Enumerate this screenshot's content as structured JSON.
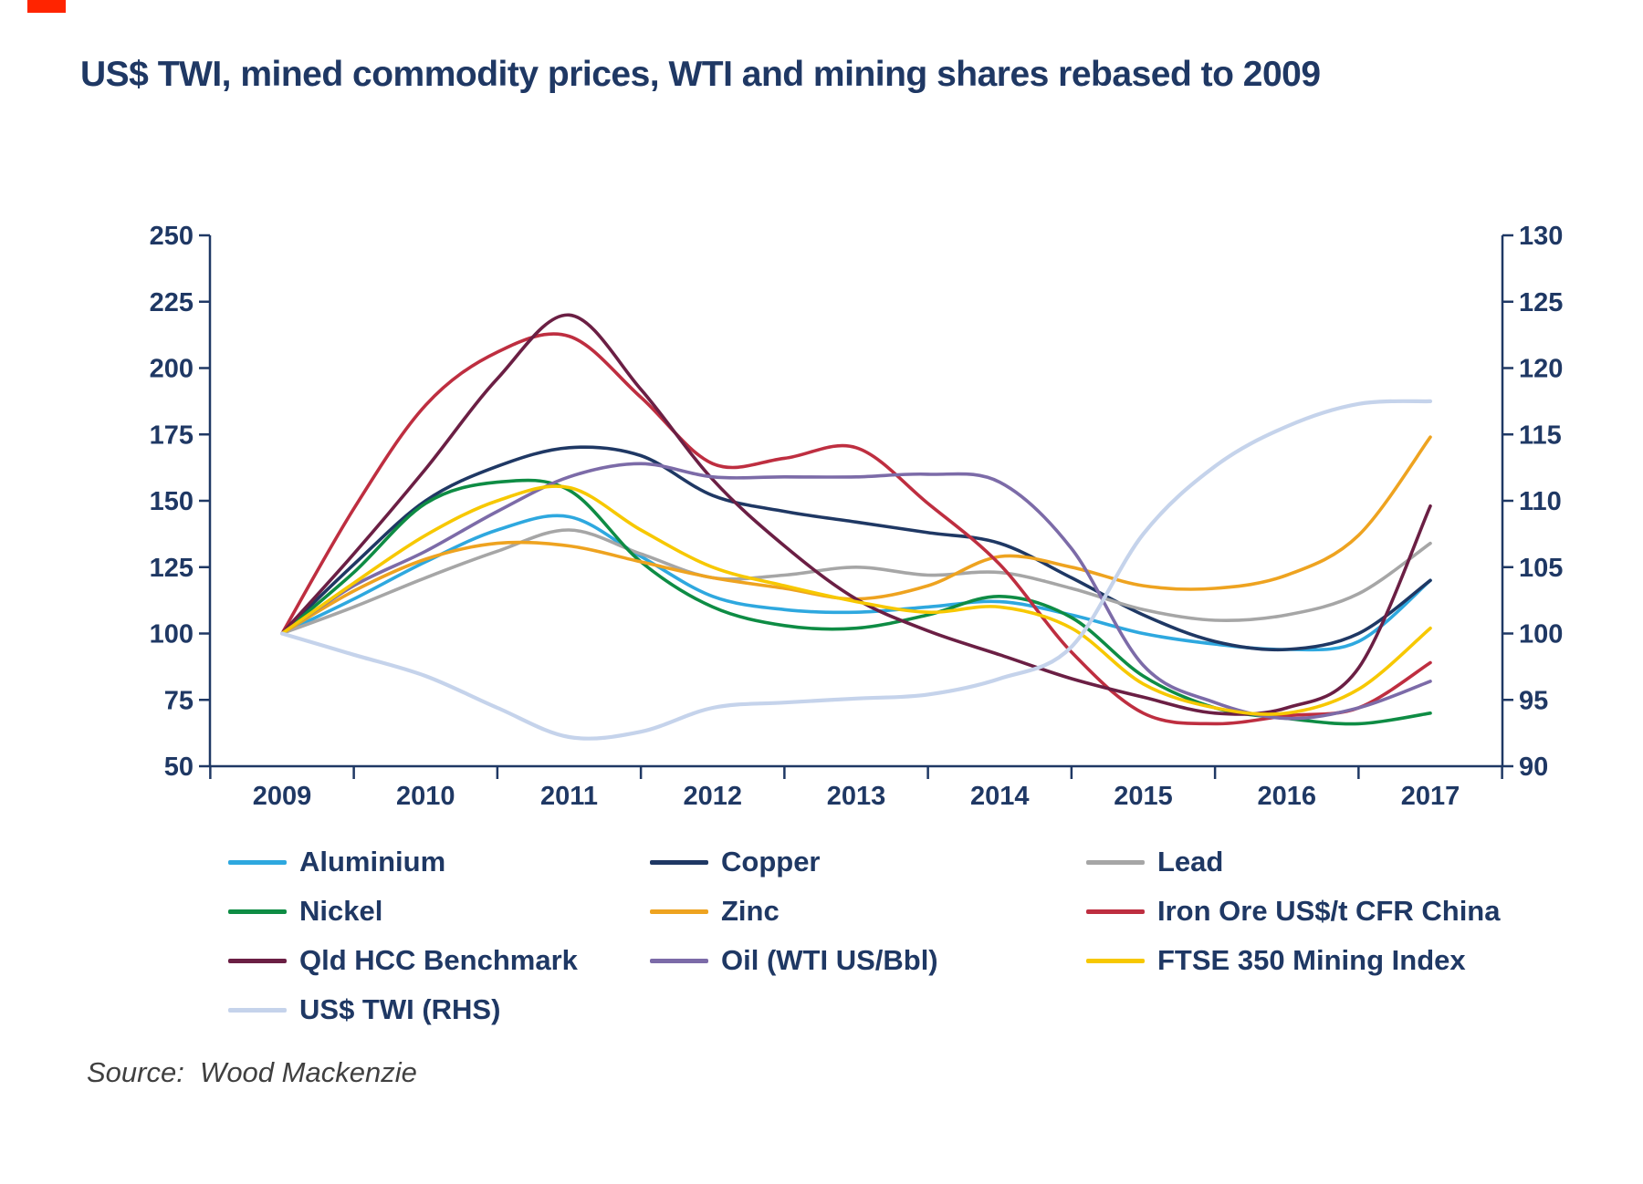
{
  "page": {
    "title": "US$ TWI, mined commodity prices, WTI and mining shares rebased to 2009",
    "source": "Source:  Wood Mackenzie"
  },
  "colors": {
    "title": "#1F3864",
    "axis": "#1F3864",
    "source_text": "#404040",
    "corner_mark": "#FF2400"
  },
  "chart_data": {
    "type": "line",
    "title": "US$ TWI, mined commodity prices, WTI and mining shares rebased to 2009",
    "grid": false,
    "legend_position": "bottom",
    "x": [
      2009,
      2009.5,
      2010,
      2010.5,
      2011,
      2011.5,
      2012,
      2012.5,
      2013,
      2013.5,
      2014,
      2014.5,
      2015,
      2015.5,
      2016,
      2016.5,
      2017
    ],
    "x_ticks": [
      "2009",
      "2010",
      "2011",
      "2012",
      "2013",
      "2014",
      "2015",
      "2016",
      "2017"
    ],
    "left_axis": {
      "min": 50,
      "max": 250,
      "step": 25,
      "ticks": [
        250,
        225,
        200,
        175,
        150,
        125,
        100,
        75,
        50
      ]
    },
    "right_axis": {
      "min": 90,
      "max": 130,
      "step": 5,
      "ticks": [
        130,
        125,
        120,
        115,
        110,
        105,
        100,
        95,
        90
      ]
    },
    "series": [
      {
        "name": "Aluminium",
        "color": "#2EA8DF",
        "axis": "left",
        "values": [
          100,
          113,
          127,
          139,
          144,
          129,
          114,
          109,
          108,
          110,
          112,
          107,
          100,
          96,
          94,
          97,
          120
        ]
      },
      {
        "name": "Copper",
        "color": "#1F3864",
        "axis": "left",
        "values": [
          100,
          126,
          150,
          163,
          170,
          167,
          152,
          146,
          142,
          138,
          134,
          121,
          107,
          97,
          94,
          100,
          120
        ]
      },
      {
        "name": "Lead",
        "color": "#A6A6A6",
        "axis": "left",
        "values": [
          100,
          110,
          121,
          131,
          139,
          130,
          121,
          122,
          125,
          122,
          123,
          117,
          109,
          105,
          107,
          115,
          134
        ]
      },
      {
        "name": "Nickel",
        "color": "#0E8C44",
        "axis": "left",
        "values": [
          100,
          123,
          149,
          157,
          154,
          127,
          110,
          103,
          102,
          107,
          114,
          106,
          84,
          72,
          68,
          66,
          70
        ]
      },
      {
        "name": "Zinc",
        "color": "#EEA320",
        "axis": "left",
        "values": [
          100,
          116,
          128,
          134,
          133,
          127,
          121,
          117,
          113,
          118,
          129,
          125,
          118,
          117,
          122,
          137,
          174
        ]
      },
      {
        "name": "Iron Ore US$/t CFR China",
        "color": "#BE2E40",
        "axis": "left",
        "values": [
          100,
          147,
          186,
          206,
          212,
          189,
          164,
          166,
          170,
          149,
          126,
          93,
          70,
          66,
          69,
          72,
          89
        ]
      },
      {
        "name": "Qld HCC Benchmark",
        "color": "#6B1F44",
        "axis": "left",
        "values": [
          100,
          130,
          162,
          196,
          220,
          192,
          158,
          133,
          113,
          101,
          92,
          83,
          76,
          70,
          72,
          87,
          148
        ]
      },
      {
        "name": "Oil (WTI US/Bbl)",
        "color": "#7C6BA8",
        "axis": "left",
        "values": [
          100,
          118,
          131,
          146,
          159,
          164,
          159,
          159,
          159,
          160,
          157,
          132,
          88,
          74,
          68,
          72,
          82
        ]
      },
      {
        "name": "FTSE 350 Mining Index",
        "color": "#F7C800",
        "axis": "left",
        "values": [
          100,
          119,
          137,
          150,
          155,
          139,
          125,
          118,
          112,
          108,
          110,
          102,
          81,
          72,
          70,
          79,
          102
        ]
      },
      {
        "name": "US$ TWI (RHS)",
        "color": "#C5D3EB",
        "axis": "right",
        "values": [
          100,
          98.4,
          96.8,
          94.4,
          92.2,
          92.6,
          94.4,
          94.8,
          95.1,
          95.4,
          96.6,
          99.0,
          107.5,
          112.6,
          115.6,
          117.3,
          117.5
        ]
      }
    ]
  }
}
